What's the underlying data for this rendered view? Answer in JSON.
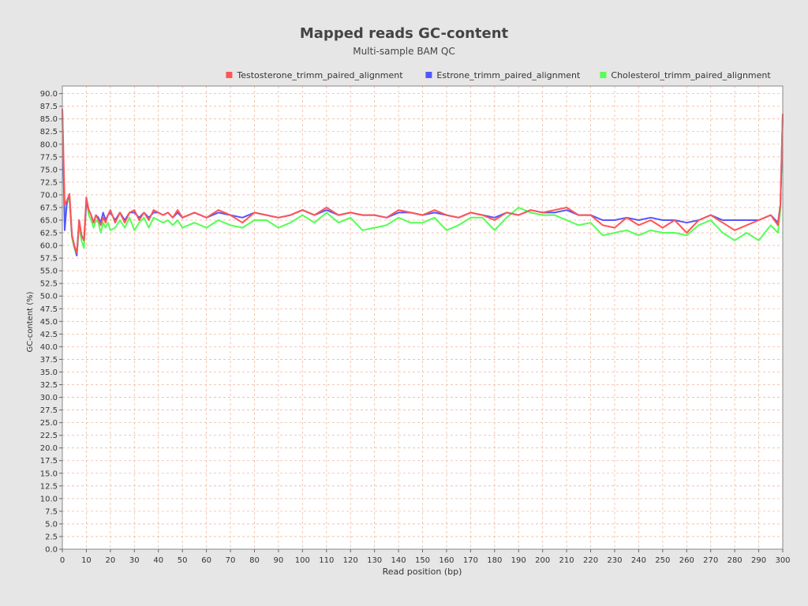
{
  "chart_data": {
    "type": "line",
    "title": "Mapped reads GC-content",
    "subtitle": "Multi-sample BAM QC",
    "xlabel": "Read position (bp)",
    "ylabel": "GC-content (%)",
    "xlim": [
      0,
      300
    ],
    "ylim": [
      0,
      91.5
    ],
    "xticks": [
      0,
      10,
      20,
      30,
      40,
      50,
      60,
      70,
      80,
      90,
      100,
      110,
      120,
      130,
      140,
      150,
      160,
      170,
      180,
      190,
      200,
      210,
      220,
      230,
      240,
      250,
      260,
      270,
      280,
      290,
      300
    ],
    "yticks": [
      0,
      2.5,
      5,
      7.5,
      10,
      12.5,
      15,
      17.5,
      20,
      22.5,
      25,
      27.5,
      30,
      32.5,
      35,
      37.5,
      40,
      42.5,
      45,
      47.5,
      50,
      52.5,
      55,
      57.5,
      60,
      62.5,
      65,
      67.5,
      70,
      72.5,
      75,
      77.5,
      80,
      82.5,
      85,
      87.5,
      90
    ],
    "grid": true,
    "legend_position": "top-right",
    "series": [
      {
        "name": "Testosterone_trimm_paired_alignment",
        "color": "#ff5555",
        "x": [
          0,
          1,
          2,
          3,
          4,
          5,
          6,
          7,
          8,
          9,
          10,
          11,
          12,
          13,
          14,
          15,
          16,
          17,
          18,
          19,
          20,
          22,
          24,
          26,
          28,
          30,
          32,
          34,
          36,
          38,
          40,
          42,
          44,
          46,
          48,
          50,
          55,
          60,
          65,
          70,
          75,
          80,
          85,
          90,
          95,
          100,
          105,
          110,
          115,
          120,
          125,
          130,
          135,
          140,
          145,
          150,
          155,
          160,
          165,
          170,
          175,
          180,
          185,
          190,
          195,
          200,
          205,
          210,
          215,
          220,
          225,
          230,
          235,
          240,
          245,
          250,
          255,
          260,
          265,
          270,
          275,
          280,
          285,
          290,
          295,
          298,
          299,
          300
        ],
        "y": [
          87,
          68,
          69,
          70.2,
          62,
          60,
          58.5,
          65,
          62,
          61,
          69.5,
          67,
          66,
          64.5,
          66,
          65,
          64,
          65.5,
          64.5,
          66,
          67,
          64.5,
          66.5,
          64.5,
          66.5,
          67,
          65,
          66.5,
          65,
          67,
          66.5,
          66,
          66.5,
          65.5,
          67,
          65.5,
          66.5,
          65.5,
          67,
          66,
          64.5,
          66.5,
          66,
          65.5,
          66,
          67,
          66,
          67.5,
          66,
          66.5,
          66,
          66,
          65.5,
          67,
          66.5,
          66,
          67,
          66,
          65.5,
          66.5,
          66,
          65,
          66.5,
          66,
          67,
          66.5,
          67,
          67.5,
          66,
          66,
          64,
          63.5,
          65.5,
          64,
          65,
          63.5,
          65,
          62.5,
          65,
          66,
          64.5,
          63,
          64,
          65,
          66,
          64,
          68,
          86
        ]
      },
      {
        "name": "Estrone_trimm_paired_alignment",
        "color": "#5555ff",
        "x": [
          0,
          1,
          2,
          3,
          4,
          5,
          6,
          7,
          8,
          9,
          10,
          11,
          12,
          13,
          14,
          15,
          16,
          17,
          18,
          19,
          20,
          22,
          24,
          26,
          28,
          30,
          32,
          34,
          36,
          38,
          40,
          42,
          44,
          46,
          48,
          50,
          55,
          60,
          65,
          70,
          75,
          80,
          85,
          90,
          95,
          100,
          105,
          110,
          115,
          120,
          125,
          130,
          135,
          140,
          145,
          150,
          155,
          160,
          165,
          170,
          175,
          180,
          185,
          190,
          195,
          200,
          205,
          210,
          215,
          220,
          225,
          230,
          235,
          240,
          245,
          250,
          255,
          260,
          265,
          270,
          275,
          280,
          285,
          290,
          295,
          298,
          299,
          300
        ],
        "y": [
          87,
          63,
          69,
          69.5,
          62,
          60,
          58,
          65,
          62,
          61,
          68.5,
          67,
          66,
          64.5,
          66,
          65.5,
          64.5,
          66.5,
          65,
          66,
          66.5,
          65,
          66.5,
          65,
          66.5,
          66.5,
          65.5,
          66.5,
          65.5,
          66.5,
          66.5,
          66,
          66.5,
          65.5,
          66.5,
          65.5,
          66.5,
          65.5,
          66.5,
          66,
          65.5,
          66.5,
          66,
          65.5,
          66,
          67,
          66,
          67,
          66,
          66.5,
          66,
          66,
          65.5,
          66.5,
          66.5,
          66,
          66.5,
          66,
          65.5,
          66.5,
          66,
          65.5,
          66.5,
          66,
          67,
          66.5,
          66.5,
          67,
          66,
          66,
          65,
          65,
          65.5,
          65,
          65.5,
          65,
          65,
          64.5,
          65,
          66,
          65,
          65,
          65,
          65,
          66,
          64.5,
          68,
          86
        ]
      },
      {
        "name": "Cholesterol_trimm_paired_alignment",
        "color": "#55ff55",
        "x": [
          0,
          1,
          2,
          3,
          4,
          5,
          6,
          7,
          8,
          9,
          10,
          11,
          12,
          13,
          14,
          15,
          16,
          17,
          18,
          19,
          20,
          22,
          24,
          26,
          28,
          30,
          32,
          34,
          36,
          38,
          40,
          42,
          44,
          46,
          48,
          50,
          55,
          60,
          65,
          70,
          75,
          80,
          85,
          90,
          95,
          100,
          105,
          110,
          115,
          120,
          125,
          130,
          135,
          140,
          145,
          150,
          155,
          160,
          165,
          170,
          175,
          180,
          185,
          190,
          195,
          200,
          205,
          210,
          215,
          220,
          225,
          230,
          235,
          240,
          245,
          250,
          255,
          260,
          265,
          270,
          275,
          280,
          285,
          290,
          295,
          298,
          299,
          300
        ],
        "y": [
          85,
          66,
          68.5,
          69,
          61.5,
          59.5,
          58,
          64,
          61,
          59.5,
          69,
          66,
          65,
          63.5,
          65,
          64.5,
          62.5,
          64.5,
          63.5,
          64.5,
          63,
          63.5,
          65,
          63.5,
          65.5,
          63,
          64.5,
          65.5,
          63.5,
          65.5,
          65,
          64.5,
          65,
          64,
          65,
          63.5,
          64.5,
          63.5,
          65,
          64,
          63.5,
          65,
          65,
          63.5,
          64.5,
          66,
          64.5,
          66.5,
          64.5,
          65.5,
          63,
          63.5,
          64,
          65.5,
          64.5,
          64.5,
          65.5,
          63,
          64,
          65.5,
          65.5,
          63,
          65.5,
          67.5,
          66.5,
          66,
          66,
          65,
          64,
          64.5,
          62,
          62.5,
          63,
          62,
          63,
          62.5,
          62.5,
          62,
          64,
          65,
          62.5,
          61,
          62.5,
          61,
          64,
          62.5,
          67,
          85
        ]
      }
    ]
  }
}
